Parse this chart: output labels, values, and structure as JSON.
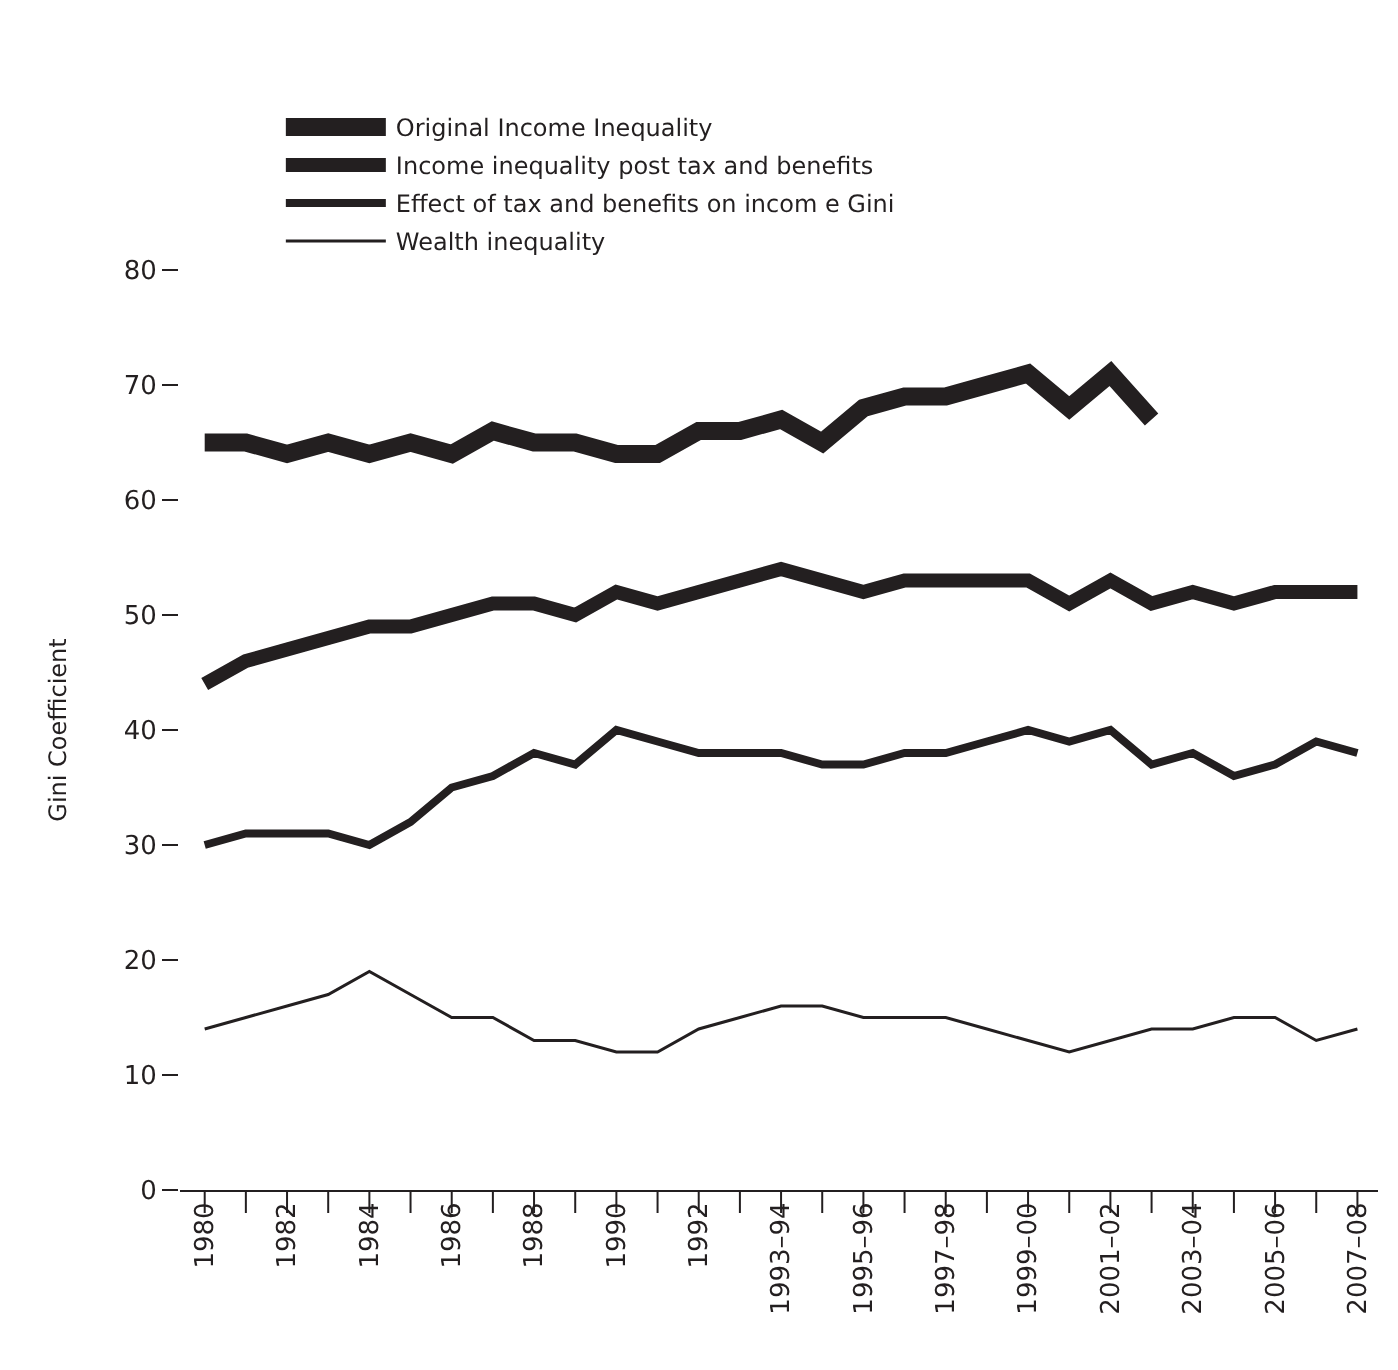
{
  "chart_data": {
    "type": "line",
    "ylabel": "Gini Coefficient",
    "categories": [
      "1980",
      null,
      "1982",
      null,
      "1984",
      null,
      "1986",
      null,
      "1988",
      null,
      "1990",
      null,
      "1992",
      null,
      "1993–94",
      null,
      "1995–96",
      null,
      "1997–98",
      null,
      "1999–00",
      null,
      "2001–02",
      null,
      "2003–04",
      null,
      "2005–06",
      null,
      "2007–08"
    ],
    "series": [
      {
        "name": "Original Income Inequality",
        "color": "#231f20",
        "values": [
          65,
          65,
          64,
          65,
          64,
          65,
          64,
          66,
          65,
          65,
          64,
          64,
          66,
          66,
          67,
          65,
          68,
          69,
          69,
          70,
          71,
          68,
          71,
          67,
          null,
          null,
          null,
          null,
          null
        ]
      },
      {
        "name": "Income inequality post tax and benefits",
        "color": "#231f20",
        "values": [
          44,
          46,
          47,
          48,
          49,
          49,
          50,
          51,
          51,
          50,
          52,
          51,
          52,
          53,
          54,
          53,
          52,
          53,
          53,
          53,
          53,
          51,
          53,
          51,
          52,
          51,
          52,
          52,
          52
        ]
      },
      {
        "name": "Effect of tax and benefits on incom e Gini",
        "color": "#231f20",
        "values": [
          30,
          31,
          31,
          31,
          30,
          32,
          35,
          36,
          38,
          37,
          40,
          39,
          38,
          38,
          38,
          37,
          37,
          38,
          38,
          39,
          40,
          39,
          40,
          37,
          38,
          36,
          37,
          39,
          38
        ]
      },
      {
        "name": "Wealth inequality",
        "color": "#231f20",
        "values": [
          14,
          15,
          16,
          17,
          19,
          17,
          15,
          15,
          13,
          13,
          12,
          12,
          14,
          15,
          16,
          16,
          15,
          15,
          15,
          14,
          13,
          12,
          13,
          14,
          14,
          15,
          15,
          13,
          14
        ]
      }
    ],
    "ylim": [
      0,
      80
    ],
    "yticks": [
      0,
      10,
      20,
      30,
      40,
      50,
      60,
      70,
      80
    ],
    "grid": false,
    "legend": "top left",
    "marker": "none",
    "line_style": "solid"
  }
}
